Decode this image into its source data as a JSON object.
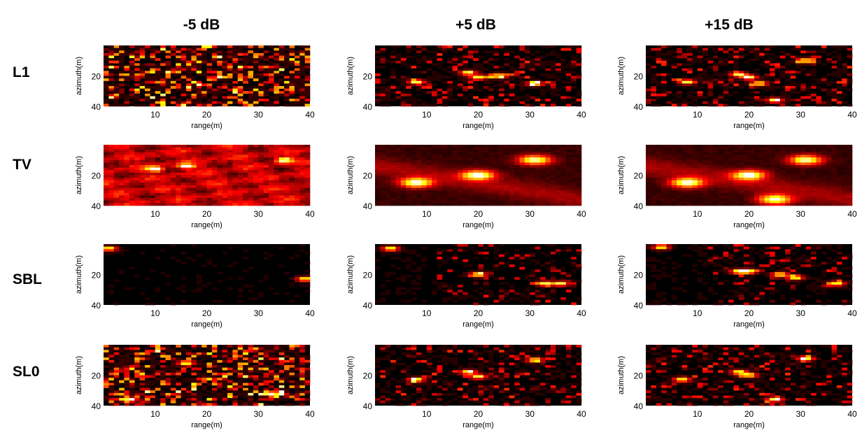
{
  "columns": [
    "-5 dB",
    "+5 dB",
    "+15 dB"
  ],
  "rows": [
    "L1",
    "TV",
    "SBL",
    "SL0"
  ],
  "chart_data": {
    "type": "heatmap",
    "colormap": "hot",
    "xlabel": "range(m)",
    "ylabel": "azimuth(m)",
    "xlim": [
      0,
      40
    ],
    "ylim": [
      0,
      40
    ],
    "xticks": [
      10,
      20,
      30,
      40
    ],
    "yticks_full": [
      20,
      40
    ],
    "yticks_mid": [
      20,
      40
    ],
    "grid": false,
    "panels": [
      {
        "row": "L1",
        "column": "-5 dB",
        "hotspots": [],
        "background": "speckle-dense"
      },
      {
        "row": "L1",
        "column": "+5 dB",
        "hotspots": [
          [
            8,
            24
          ],
          [
            18,
            18
          ],
          [
            20,
            21
          ],
          [
            24,
            20
          ],
          [
            31,
            25
          ]
        ],
        "background": "speckle-sparse"
      },
      {
        "row": "L1",
        "column": "+15 dB",
        "hotspots": [
          [
            8,
            24
          ],
          [
            18,
            19
          ],
          [
            20,
            21
          ],
          [
            22,
            25
          ],
          [
            31,
            10
          ],
          [
            25,
            36
          ]
        ],
        "background": "speckle-sparse"
      },
      {
        "row": "TV",
        "column": "-5 dB",
        "hotspots": [
          [
            35,
            10
          ],
          [
            10,
            16
          ],
          [
            16,
            14
          ]
        ],
        "background": "blotchy"
      },
      {
        "row": "TV",
        "column": "+5 dB",
        "hotspots": [
          [
            8,
            25
          ],
          [
            20,
            20
          ],
          [
            31,
            10
          ]
        ],
        "background": "smooth-streak"
      },
      {
        "row": "TV",
        "column": "+15 dB",
        "hotspots": [
          [
            8,
            25
          ],
          [
            20,
            20
          ],
          [
            31,
            10
          ],
          [
            25,
            36
          ]
        ],
        "background": "smooth-streak"
      },
      {
        "row": "SBL",
        "column": "-5 dB",
        "hotspots": [
          [
            1,
            3
          ],
          [
            39,
            23
          ]
        ],
        "background": "near-empty"
      },
      {
        "row": "SBL",
        "column": "+5 dB",
        "hotspots": [
          [
            3,
            3
          ],
          [
            20,
            20
          ],
          [
            33,
            26
          ],
          [
            36,
            26
          ]
        ],
        "background": "horizontal-streaks"
      },
      {
        "row": "SBL",
        "column": "+15 dB",
        "hotspots": [
          [
            3,
            2
          ],
          [
            18,
            18
          ],
          [
            20,
            18
          ],
          [
            26,
            20
          ],
          [
            29,
            22
          ],
          [
            37,
            26
          ]
        ],
        "background": "horizontal-streaks"
      },
      {
        "row": "SL0",
        "column": "-5 dB",
        "hotspots": [
          [
            5,
            36
          ],
          [
            33,
            32
          ],
          [
            16,
            12
          ]
        ],
        "background": "speckle-dense"
      },
      {
        "row": "SL0",
        "column": "+5 dB",
        "hotspots": [
          [
            8,
            23
          ],
          [
            18,
            18
          ],
          [
            20,
            21
          ],
          [
            31,
            10
          ]
        ],
        "background": "speckle-sparse"
      },
      {
        "row": "SL0",
        "column": "+15 dB",
        "hotspots": [
          [
            7,
            23
          ],
          [
            18,
            18
          ],
          [
            20,
            20
          ],
          [
            31,
            9
          ],
          [
            25,
            36
          ]
        ],
        "background": "speckle-sparse"
      }
    ]
  }
}
